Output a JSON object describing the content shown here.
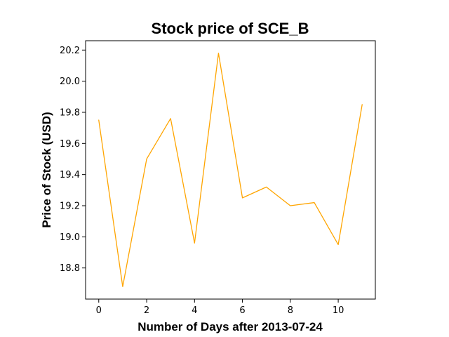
{
  "chart_data": {
    "type": "line",
    "title": "Stock price of SCE_B",
    "xlabel": "Number of Days after 2013-07-24",
    "ylabel": "Price of Stock (USD)",
    "x": [
      0,
      1,
      2,
      3,
      4,
      5,
      6,
      7,
      8,
      9,
      10,
      11
    ],
    "series": [
      {
        "values": [
          19.75,
          18.68,
          19.5,
          19.76,
          18.96,
          20.18,
          19.25,
          19.32,
          19.2,
          19.22,
          18.95,
          19.85
        ],
        "color": "#ffa500"
      }
    ],
    "xlim": [
      -0.55,
      11.55
    ],
    "ylim": [
      18.6,
      20.26
    ],
    "xticks": [
      0,
      2,
      4,
      6,
      8,
      10
    ],
    "xtick_labels": [
      "0",
      "2",
      "4",
      "6",
      "8",
      "10"
    ],
    "yticks": [
      18.8,
      19.0,
      19.2,
      19.4,
      19.6,
      19.8,
      20.0,
      20.2
    ],
    "ytick_labels": [
      "18.8",
      "19.0",
      "19.2",
      "19.4",
      "19.6",
      "19.8",
      "20.0",
      "20.2"
    ],
    "grid": false,
    "legend": "none"
  }
}
